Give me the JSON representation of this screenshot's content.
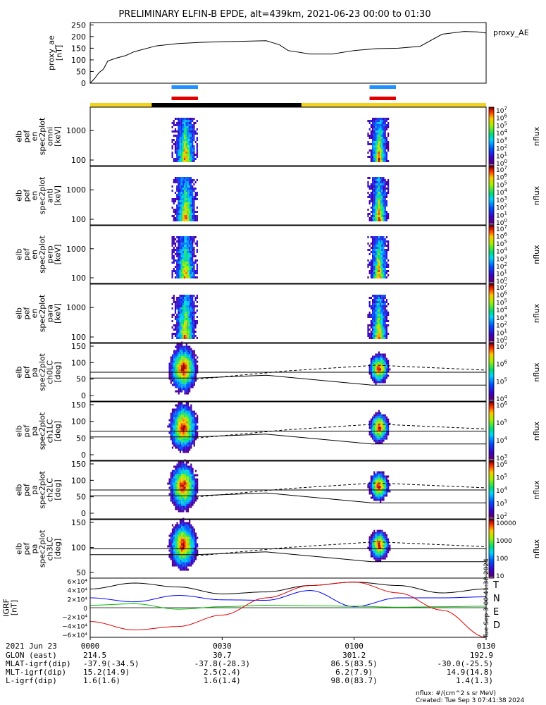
{
  "title": "PRELIMINARY ELFIN-B EPDE, alt=439km, 2021-06-23 00:00 to 01:30",
  "colors": {
    "orbit_yellow": "#f2d21a",
    "orbit_black": "#000000",
    "bar_blue": "#1e90ff",
    "bar_red": "#e00000",
    "grf_t": "#000000",
    "grf_n": "#0000ff",
    "grf_e": "#00c000",
    "grf_d": "#e00000"
  },
  "chart_data": [
    {
      "type": "line",
      "name_label": "proxy_AE",
      "ylabel": "proxy_ae\n[nT]",
      "yticks": [
        "250",
        "200",
        "150",
        "100",
        "50",
        "0"
      ],
      "ylim": [
        0,
        260
      ],
      "series": [
        {
          "x": [
            0,
            1,
            2,
            3,
            4,
            6,
            8,
            10,
            15,
            20,
            25,
            30,
            35,
            40,
            43,
            45,
            50,
            55,
            60,
            65,
            70,
            75,
            80,
            85,
            88,
            90
          ],
          "y": [
            0,
            20,
            45,
            60,
            95,
            108,
            118,
            135,
            160,
            170,
            175,
            178,
            180,
            182,
            165,
            140,
            125,
            125,
            140,
            148,
            150,
            158,
            210,
            222,
            220,
            215
          ]
        }
      ]
    },
    {
      "type": "heatmap",
      "ylabel": "elb\npef\nen\nspec2plot\nomni\n[keV]",
      "yticks": [
        "1000",
        "100"
      ],
      "colorbar": {
        "ticks": [
          "10",
          "10",
          "10",
          "10",
          "10",
          "10",
          "10",
          "10"
        ],
        "exps": [
          "7",
          "6",
          "5",
          "4",
          "3",
          "2",
          "1",
          "0"
        ],
        "label": "nflux"
      }
    },
    {
      "type": "heatmap",
      "ylabel": "elb\npef\nen\nspec2plot\nanti\n[keV]",
      "yticks": [
        "1000",
        "100"
      ],
      "colorbar": {
        "ticks": [
          "10",
          "10",
          "10",
          "10",
          "10",
          "10",
          "10",
          "10"
        ],
        "exps": [
          "7",
          "6",
          "5",
          "4",
          "3",
          "2",
          "1",
          "0"
        ],
        "label": "nflux"
      }
    },
    {
      "type": "heatmap",
      "ylabel": "elb\npef\nen\nspec2plot\nperp\n[keV]",
      "yticks": [
        "1000",
        "100"
      ],
      "colorbar": {
        "ticks": [
          "10",
          "10",
          "10",
          "10",
          "10",
          "10",
          "10",
          "10"
        ],
        "exps": [
          "7",
          "6",
          "5",
          "4",
          "3",
          "2",
          "1",
          "0"
        ],
        "label": "nflux"
      }
    },
    {
      "type": "heatmap",
      "ylabel": "elb\npef\nen\nspec2plot\npara\n[keV]",
      "yticks": [
        "1000",
        "100"
      ],
      "colorbar": {
        "ticks": [
          "10",
          "10",
          "10",
          "10",
          "10",
          "10",
          "10",
          "10"
        ],
        "exps": [
          "7",
          "6",
          "5",
          "4",
          "3",
          "2",
          "1",
          "0"
        ],
        "label": "nflux"
      }
    },
    {
      "type": "heatmap",
      "ylabel": "elb\npef\npa\nspec2plot\nch0LC\n[deg]",
      "yticks": [
        "150",
        "100",
        "50",
        "0"
      ],
      "colorbar": {
        "ticks": [
          "10",
          "10",
          "10",
          "10"
        ],
        "exps": [
          "7",
          "6",
          "5",
          "4"
        ],
        "label": "nflux"
      }
    },
    {
      "type": "heatmap",
      "ylabel": "elb\npef\npa\nspec2plot\nch1LC\n[deg]",
      "yticks": [
        "150",
        "100",
        "50",
        "0"
      ],
      "colorbar": {
        "ticks": [
          "10",
          "10",
          "10",
          "10"
        ],
        "exps": [
          "6",
          "5",
          "4",
          "3"
        ],
        "label": "nflux"
      }
    },
    {
      "type": "heatmap",
      "ylabel": "elb\npef\npa\nspec2plot\nch2LC\n[deg]",
      "yticks": [
        "150",
        "100",
        "50",
        "0"
      ],
      "colorbar": {
        "ticks": [
          "10",
          "10",
          "10",
          "10",
          "10"
        ],
        "exps": [
          "6",
          "5",
          "4",
          "3",
          "2"
        ],
        "label": "nflux"
      }
    },
    {
      "type": "heatmap",
      "ylabel": "elb\npef\npa\nspec2plot\nch3LC\n[deg]",
      "yticks": [
        "150",
        "100",
        "50"
      ],
      "colorbar": {
        "ticks": [
          "10000",
          "1000",
          "100",
          "10"
        ],
        "exps": [
          "",
          "",
          "",
          ""
        ],
        "label": "nflux"
      }
    },
    {
      "type": "line",
      "ylabel": "IGRF\n[nT]",
      "yticks": [
        "6×10⁴",
        "4×10⁴",
        "2×10⁴",
        "0",
        "−2×10⁴",
        "−4×10⁴",
        "−6×10⁴"
      ],
      "ylim": [
        -60000,
        60000
      ],
      "series": [
        {
          "name": "T",
          "x": [
            0,
            10,
            20,
            30,
            40,
            50,
            60,
            70,
            80,
            90
          ],
          "y": [
            38000,
            50000,
            42000,
            28000,
            32000,
            45000,
            52000,
            45000,
            30000,
            38000
          ]
        },
        {
          "name": "N",
          "x": [
            0,
            10,
            20,
            30,
            40,
            50,
            60,
            70,
            80,
            90
          ],
          "y": [
            20000,
            12000,
            25000,
            16000,
            15000,
            35000,
            2000,
            20000,
            20000,
            22000
          ]
        },
        {
          "name": "E",
          "x": [
            0,
            10,
            20,
            30,
            40,
            50,
            60,
            70,
            80,
            90
          ],
          "y": [
            5000,
            8000,
            -3000,
            2000,
            5000,
            4000,
            3000,
            1000,
            2000,
            3000
          ]
        },
        {
          "name": "D",
          "x": [
            0,
            10,
            20,
            30,
            40,
            50,
            60,
            70,
            80,
            90
          ],
          "y": [
            -28000,
            -45000,
            -38000,
            -15000,
            20000,
            45000,
            52000,
            30000,
            -5000,
            -60000
          ]
        }
      ]
    }
  ],
  "footer": {
    "date_label": "2021 Jun 23",
    "rows": [
      {
        "label": "GLON (east)",
        "vals": [
          "214.5",
          "30.7",
          "301.2",
          "192.9"
        ]
      },
      {
        "label": "MLAT-igrf(dip)",
        "vals": [
          "-37.9(-34.5)",
          "-37.8(-28.3)",
          "86.5(83.5)",
          "-30.0(-25.5)"
        ]
      },
      {
        "label": "MLT-igrf(dip)",
        "vals": [
          "15.2(14.9)",
          "2.5(2.4)",
          "6.2(7.9)",
          "14.9(14.8)"
        ]
      },
      {
        "label": "L-igrf(dip)",
        "vals": [
          "1.6(1.6)",
          "1.6(1.4)",
          "98.0(83.7)",
          "1.4(1.3)"
        ]
      }
    ],
    "times": [
      "0000",
      "0030",
      "0100",
      "0130"
    ],
    "nflux_note": "nflux: #/(cm^2 s sr MeV)",
    "created": "Created: Tue Sep  3 07:41:38 2024",
    "side_stamp": "Tue Sep  3 00:41:38 2024"
  }
}
